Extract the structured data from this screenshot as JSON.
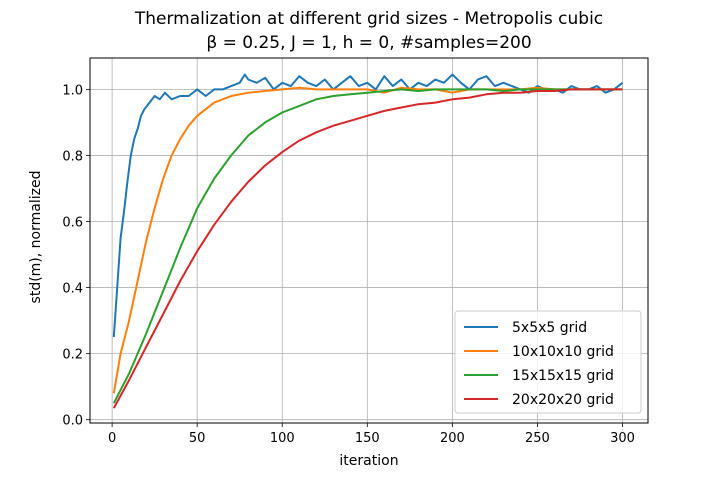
{
  "chart_data": {
    "type": "line",
    "title": "Thermalization at different grid sizes - Metropolis cubic",
    "subtitle": "β = 0.25, J = 1, h = 0, #samples=200",
    "xlabel": "iteration",
    "ylabel": "std(m), normalized",
    "xlim": [
      -13,
      315
    ],
    "ylim": [
      -0.01,
      1.095
    ],
    "xticks": [
      0,
      50,
      100,
      150,
      200,
      250,
      300
    ],
    "yticks": [
      0.0,
      0.2,
      0.4,
      0.6,
      0.8,
      1.0
    ],
    "xtick_labels": [
      "0",
      "50",
      "100",
      "150",
      "200",
      "250",
      "300"
    ],
    "ytick_labels": [
      "0.0",
      "0.2",
      "0.4",
      "0.6",
      "0.8",
      "1.0"
    ],
    "grid": true,
    "legend_position": "lower-right",
    "series": [
      {
        "name": "5x5x5 grid",
        "color": "#1f77b4",
        "x": [
          1,
          3,
          5,
          7,
          9,
          11,
          13,
          15,
          17,
          19,
          22,
          25,
          28,
          31,
          35,
          40,
          45,
          50,
          55,
          60,
          65,
          70,
          75,
          78,
          80,
          85,
          90,
          95,
          100,
          105,
          110,
          115,
          120,
          125,
          130,
          135,
          140,
          145,
          150,
          155,
          160,
          165,
          170,
          175,
          180,
          185,
          190,
          195,
          200,
          205,
          210,
          215,
          220,
          225,
          230,
          235,
          240,
          245,
          250,
          255,
          260,
          265,
          270,
          275,
          280,
          285,
          290,
          295,
          300
        ],
        "y": [
          0.25,
          0.4,
          0.55,
          0.63,
          0.72,
          0.8,
          0.85,
          0.88,
          0.92,
          0.94,
          0.96,
          0.98,
          0.97,
          0.99,
          0.97,
          0.98,
          0.98,
          1.0,
          0.98,
          1.0,
          1.0,
          1.01,
          1.02,
          1.045,
          1.03,
          1.02,
          1.035,
          1.0,
          1.02,
          1.01,
          1.04,
          1.02,
          1.01,
          1.03,
          1.0,
          1.02,
          1.04,
          1.01,
          1.02,
          1.0,
          1.04,
          1.01,
          1.03,
          1.0,
          1.02,
          1.01,
          1.03,
          1.02,
          1.045,
          1.02,
          1.0,
          1.03,
          1.04,
          1.01,
          1.02,
          1.01,
          1.0,
          0.99,
          1.01,
          1.0,
          1.0,
          0.99,
          1.01,
          1.0,
          1.0,
          1.01,
          0.99,
          1.0,
          1.02
        ]
      },
      {
        "name": "10x10x10 grid",
        "color": "#ff7f0e",
        "x": [
          1,
          5,
          10,
          15,
          20,
          25,
          30,
          35,
          40,
          45,
          50,
          55,
          60,
          65,
          70,
          80,
          90,
          100,
          110,
          120,
          130,
          140,
          150,
          160,
          170,
          180,
          190,
          200,
          210,
          220,
          230,
          240,
          250,
          260,
          270,
          280,
          290,
          300
        ],
        "y": [
          0.08,
          0.2,
          0.3,
          0.42,
          0.54,
          0.64,
          0.73,
          0.8,
          0.85,
          0.89,
          0.92,
          0.94,
          0.96,
          0.97,
          0.98,
          0.99,
          0.995,
          1.0,
          1.005,
          1.0,
          1.0,
          1.0,
          1.0,
          0.99,
          1.005,
          1.0,
          1.0,
          0.99,
          1.0,
          1.0,
          1.0,
          1.0,
          1.005,
          1.0,
          1.0,
          1.0,
          1.0,
          1.0
        ]
      },
      {
        "name": "15x15x15 grid",
        "color": "#2ca02c",
        "x": [
          1,
          10,
          20,
          30,
          40,
          50,
          60,
          70,
          80,
          90,
          100,
          110,
          120,
          130,
          140,
          150,
          160,
          170,
          180,
          190,
          200,
          210,
          220,
          230,
          240,
          250,
          260,
          270,
          280,
          290,
          300
        ],
        "y": [
          0.05,
          0.14,
          0.26,
          0.39,
          0.52,
          0.64,
          0.73,
          0.8,
          0.86,
          0.9,
          0.93,
          0.95,
          0.97,
          0.98,
          0.985,
          0.99,
          0.995,
          1.0,
          0.995,
          1.0,
          1.0,
          1.0,
          1.0,
          0.995,
          1.0,
          1.0,
          1.0,
          1.0,
          1.0,
          1.0,
          1.0
        ]
      },
      {
        "name": "20x20x20 grid",
        "color": "#d62728",
        "x": [
          1,
          10,
          20,
          30,
          40,
          50,
          60,
          70,
          80,
          90,
          100,
          110,
          120,
          130,
          140,
          150,
          160,
          170,
          180,
          190,
          200,
          210,
          220,
          230,
          240,
          250,
          260,
          270,
          280,
          290,
          300
        ],
        "y": [
          0.035,
          0.12,
          0.22,
          0.32,
          0.42,
          0.51,
          0.59,
          0.66,
          0.72,
          0.77,
          0.81,
          0.845,
          0.87,
          0.89,
          0.905,
          0.92,
          0.935,
          0.945,
          0.955,
          0.96,
          0.97,
          0.975,
          0.985,
          0.99,
          0.99,
          0.995,
          0.995,
          1.0,
          1.0,
          1.0,
          1.0
        ]
      }
    ]
  }
}
